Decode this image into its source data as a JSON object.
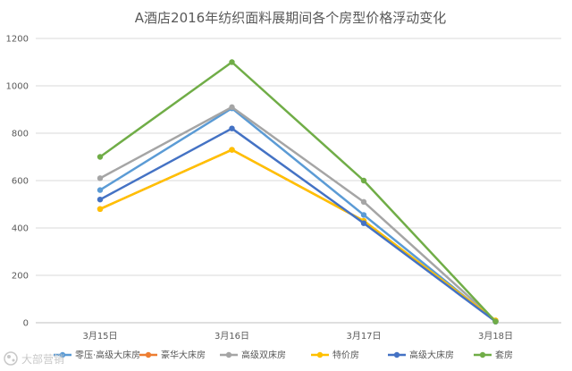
{
  "chart_data": {
    "type": "line",
    "title": "A酒店2016年纺织面料展期间各个房型价格浮动变化",
    "xlabel": "",
    "ylabel": "",
    "categories": [
      "3月15日",
      "3月16日",
      "3月17日",
      "3月18日"
    ],
    "ylim": [
      0,
      1200
    ],
    "yticks": [
      0,
      200,
      400,
      600,
      800,
      1000,
      1200
    ],
    "grid": true,
    "legend_position": "bottom",
    "series": [
      {
        "name": "零压·高级大床房",
        "color": "#5b9bd5",
        "values": [
          560,
          905,
          455,
          5
        ]
      },
      {
        "name": "豪华大床房",
        "color": "#ed7d31",
        "values": [
          480,
          730,
          430,
          8
        ]
      },
      {
        "name": "高级双床房",
        "color": "#a5a5a5",
        "values": [
          610,
          910,
          510,
          8
        ]
      },
      {
        "name": "特价房",
        "color": "#ffc000",
        "values": [
          480,
          730,
          430,
          10
        ]
      },
      {
        "name": "高级大床房",
        "color": "#4472c4",
        "values": [
          520,
          820,
          420,
          5
        ]
      },
      {
        "name": "套房",
        "color": "#70ad47",
        "values": [
          700,
          1100,
          600,
          5
        ]
      }
    ]
  },
  "watermark": {
    "text": "大部营销"
  }
}
